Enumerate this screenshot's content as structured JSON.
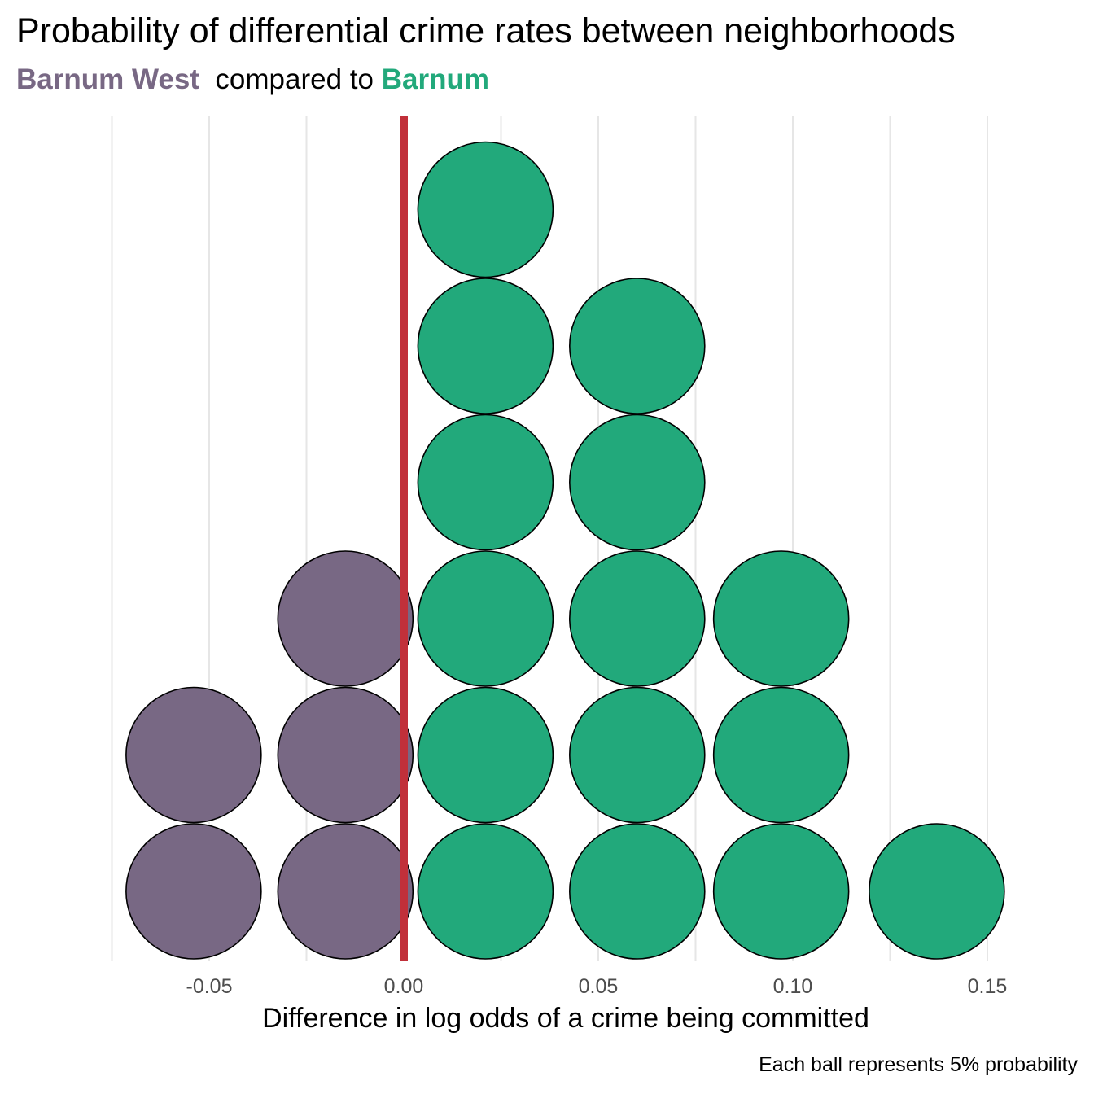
{
  "chart_data": {
    "type": "dotplot",
    "title": "Probability of differential crime rates between neighborhoods",
    "subtitle": {
      "left_name": "Barnum West",
      "middle": "compared to",
      "right_name": "Barnum"
    },
    "xlabel": "Difference in log odds of a crime being committed",
    "caption": "Each ball represents 5% probability",
    "xlim": [
      -0.075,
      0.16
    ],
    "x_ticks": [
      -0.05,
      0.0,
      0.05,
      0.1,
      0.15
    ],
    "x_tick_labels": [
      "-0.05",
      "0.00",
      "0.05",
      "0.10",
      "0.15"
    ],
    "reference_line_x": 0.0,
    "grid": "vertical major and minor",
    "stacks": [
      {
        "x": -0.054,
        "count": 2,
        "group": "Barnum West"
      },
      {
        "x": -0.015,
        "count": 3,
        "group": "Barnum West"
      },
      {
        "x": 0.021,
        "count": 6,
        "group": "Barnum"
      },
      {
        "x": 0.06,
        "count": 5,
        "group": "Barnum"
      },
      {
        "x": 0.097,
        "count": 3,
        "group": "Barnum"
      },
      {
        "x": 0.137,
        "count": 1,
        "group": "Barnum"
      }
    ],
    "colors": {
      "Barnum West": "#786884",
      "Barnum": "#22A97B",
      "reference_line": "#C1303A",
      "grid": "#E6E6E6"
    }
  }
}
